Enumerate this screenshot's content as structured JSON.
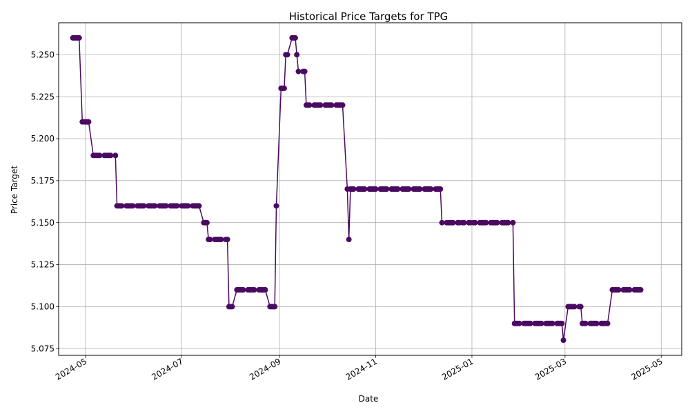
{
  "chart_data": {
    "type": "line",
    "title": "Historical Price Targets for TPG",
    "xlabel": "Date",
    "ylabel": "Price Target",
    "grid": true,
    "line_color": "#4b0a62",
    "marker": "circle",
    "ylim": [
      5.071,
      5.269
    ],
    "xlim": [
      "2024-04-14",
      "2025-05-14"
    ],
    "yticks": [
      "5.075",
      "5.100",
      "5.125",
      "5.150",
      "5.175",
      "5.200",
      "5.225",
      "5.250"
    ],
    "xticks": [
      {
        "date": "2024-05-01",
        "label": "2024-05"
      },
      {
        "date": "2024-07-01",
        "label": "2024-07"
      },
      {
        "date": "2024-09-01",
        "label": "2024-09"
      },
      {
        "date": "2024-11-01",
        "label": "2024-11"
      },
      {
        "date": "2025-01-01",
        "label": "2025-01"
      },
      {
        "date": "2025-03-01",
        "label": "2025-03"
      },
      {
        "date": "2025-05-01",
        "label": "2025-05"
      }
    ],
    "series": [
      {
        "points": [
          [
            "2024-04-23",
            5.26
          ],
          [
            "2024-04-24",
            5.26
          ],
          [
            "2024-04-25",
            5.26
          ],
          [
            "2024-04-26",
            5.26
          ],
          [
            "2024-04-27",
            5.26
          ],
          [
            "2024-04-29",
            5.21
          ],
          [
            "2024-04-30",
            5.21
          ],
          [
            "2024-05-01",
            5.21
          ],
          [
            "2024-05-02",
            5.21
          ],
          [
            "2024-05-03",
            5.21
          ],
          [
            "2024-05-06",
            5.19
          ],
          [
            "2024-05-07",
            5.19
          ],
          [
            "2024-05-08",
            5.19
          ],
          [
            "2024-05-09",
            5.19
          ],
          [
            "2024-05-10",
            5.19
          ],
          [
            "2024-05-13",
            5.19
          ],
          [
            "2024-05-14",
            5.19
          ],
          [
            "2024-05-15",
            5.19
          ],
          [
            "2024-05-16",
            5.19
          ],
          [
            "2024-05-17",
            5.19
          ],
          [
            "2024-05-20",
            5.19
          ],
          [
            "2024-05-21",
            5.16
          ],
          [
            "2024-05-22",
            5.16
          ],
          [
            "2024-05-23",
            5.16
          ],
          [
            "2024-05-24",
            5.16
          ],
          [
            "2024-05-27",
            5.16
          ],
          [
            "2024-05-28",
            5.16
          ],
          [
            "2024-05-29",
            5.16
          ],
          [
            "2024-05-30",
            5.16
          ],
          [
            "2024-05-31",
            5.16
          ],
          [
            "2024-06-03",
            5.16
          ],
          [
            "2024-06-04",
            5.16
          ],
          [
            "2024-06-05",
            5.16
          ],
          [
            "2024-06-06",
            5.16
          ],
          [
            "2024-06-07",
            5.16
          ],
          [
            "2024-06-10",
            5.16
          ],
          [
            "2024-06-11",
            5.16
          ],
          [
            "2024-06-12",
            5.16
          ],
          [
            "2024-06-13",
            5.16
          ],
          [
            "2024-06-14",
            5.16
          ],
          [
            "2024-06-17",
            5.16
          ],
          [
            "2024-06-18",
            5.16
          ],
          [
            "2024-06-19",
            5.16
          ],
          [
            "2024-06-20",
            5.16
          ],
          [
            "2024-06-21",
            5.16
          ],
          [
            "2024-06-24",
            5.16
          ],
          [
            "2024-06-25",
            5.16
          ],
          [
            "2024-06-26",
            5.16
          ],
          [
            "2024-06-27",
            5.16
          ],
          [
            "2024-06-28",
            5.16
          ],
          [
            "2024-07-01",
            5.16
          ],
          [
            "2024-07-02",
            5.16
          ],
          [
            "2024-07-03",
            5.16
          ],
          [
            "2024-07-04",
            5.16
          ],
          [
            "2024-07-05",
            5.16
          ],
          [
            "2024-07-08",
            5.16
          ],
          [
            "2024-07-09",
            5.16
          ],
          [
            "2024-07-10",
            5.16
          ],
          [
            "2024-07-11",
            5.16
          ],
          [
            "2024-07-12",
            5.16
          ],
          [
            "2024-07-15",
            5.15
          ],
          [
            "2024-07-16",
            5.15
          ],
          [
            "2024-07-17",
            5.15
          ],
          [
            "2024-07-18",
            5.14
          ],
          [
            "2024-07-19",
            5.14
          ],
          [
            "2024-07-22",
            5.14
          ],
          [
            "2024-07-23",
            5.14
          ],
          [
            "2024-07-24",
            5.14
          ],
          [
            "2024-07-25",
            5.14
          ],
          [
            "2024-07-26",
            5.14
          ],
          [
            "2024-07-29",
            5.14
          ],
          [
            "2024-07-30",
            5.14
          ],
          [
            "2024-07-31",
            5.1
          ],
          [
            "2024-08-01",
            5.1
          ],
          [
            "2024-08-02",
            5.1
          ],
          [
            "2024-08-05",
            5.11
          ],
          [
            "2024-08-06",
            5.11
          ],
          [
            "2024-08-07",
            5.11
          ],
          [
            "2024-08-08",
            5.11
          ],
          [
            "2024-08-09",
            5.11
          ],
          [
            "2024-08-12",
            5.11
          ],
          [
            "2024-08-13",
            5.11
          ],
          [
            "2024-08-14",
            5.11
          ],
          [
            "2024-08-15",
            5.11
          ],
          [
            "2024-08-16",
            5.11
          ],
          [
            "2024-08-19",
            5.11
          ],
          [
            "2024-08-20",
            5.11
          ],
          [
            "2024-08-21",
            5.11
          ],
          [
            "2024-08-22",
            5.11
          ],
          [
            "2024-08-23",
            5.11
          ],
          [
            "2024-08-26",
            5.1
          ],
          [
            "2024-08-27",
            5.1
          ],
          [
            "2024-08-28",
            5.1
          ],
          [
            "2024-08-29",
            5.1
          ],
          [
            "2024-08-30",
            5.16
          ],
          [
            "2024-09-02",
            5.23
          ],
          [
            "2024-09-03",
            5.23
          ],
          [
            "2024-09-04",
            5.23
          ],
          [
            "2024-09-05",
            5.25
          ],
          [
            "2024-09-06",
            5.25
          ],
          [
            "2024-09-09",
            5.26
          ],
          [
            "2024-09-10",
            5.26
          ],
          [
            "2024-09-11",
            5.26
          ],
          [
            "2024-09-12",
            5.25
          ],
          [
            "2024-09-13",
            5.24
          ],
          [
            "2024-09-16",
            5.24
          ],
          [
            "2024-09-17",
            5.24
          ],
          [
            "2024-09-18",
            5.22
          ],
          [
            "2024-09-19",
            5.22
          ],
          [
            "2024-09-20",
            5.22
          ],
          [
            "2024-09-23",
            5.22
          ],
          [
            "2024-09-24",
            5.22
          ],
          [
            "2024-09-25",
            5.22
          ],
          [
            "2024-09-26",
            5.22
          ],
          [
            "2024-09-27",
            5.22
          ],
          [
            "2024-09-30",
            5.22
          ],
          [
            "2024-10-01",
            5.22
          ],
          [
            "2024-10-02",
            5.22
          ],
          [
            "2024-10-03",
            5.22
          ],
          [
            "2024-10-04",
            5.22
          ],
          [
            "2024-10-07",
            5.22
          ],
          [
            "2024-10-08",
            5.22
          ],
          [
            "2024-10-09",
            5.22
          ],
          [
            "2024-10-10",
            5.22
          ],
          [
            "2024-10-11",
            5.22
          ],
          [
            "2024-10-14",
            5.17
          ],
          [
            "2024-10-15",
            5.14
          ],
          [
            "2024-10-16",
            5.17
          ],
          [
            "2024-10-17",
            5.17
          ],
          [
            "2024-10-18",
            5.17
          ],
          [
            "2024-10-21",
            5.17
          ],
          [
            "2024-10-22",
            5.17
          ],
          [
            "2024-10-23",
            5.17
          ],
          [
            "2024-10-24",
            5.17
          ],
          [
            "2024-10-25",
            5.17
          ],
          [
            "2024-10-28",
            5.17
          ],
          [
            "2024-10-29",
            5.17
          ],
          [
            "2024-10-30",
            5.17
          ],
          [
            "2024-10-31",
            5.17
          ],
          [
            "2024-11-01",
            5.17
          ],
          [
            "2024-11-04",
            5.17
          ],
          [
            "2024-11-05",
            5.17
          ],
          [
            "2024-11-06",
            5.17
          ],
          [
            "2024-11-07",
            5.17
          ],
          [
            "2024-11-08",
            5.17
          ],
          [
            "2024-11-11",
            5.17
          ],
          [
            "2024-11-12",
            5.17
          ],
          [
            "2024-11-13",
            5.17
          ],
          [
            "2024-11-14",
            5.17
          ],
          [
            "2024-11-15",
            5.17
          ],
          [
            "2024-11-18",
            5.17
          ],
          [
            "2024-11-19",
            5.17
          ],
          [
            "2024-11-20",
            5.17
          ],
          [
            "2024-11-21",
            5.17
          ],
          [
            "2024-11-22",
            5.17
          ],
          [
            "2024-11-25",
            5.17
          ],
          [
            "2024-11-26",
            5.17
          ],
          [
            "2024-11-27",
            5.17
          ],
          [
            "2024-11-28",
            5.17
          ],
          [
            "2024-11-29",
            5.17
          ],
          [
            "2024-12-02",
            5.17
          ],
          [
            "2024-12-03",
            5.17
          ],
          [
            "2024-12-04",
            5.17
          ],
          [
            "2024-12-05",
            5.17
          ],
          [
            "2024-12-06",
            5.17
          ],
          [
            "2024-12-09",
            5.17
          ],
          [
            "2024-12-10",
            5.17
          ],
          [
            "2024-12-11",
            5.17
          ],
          [
            "2024-12-12",
            5.17
          ],
          [
            "2024-12-13",
            5.15
          ],
          [
            "2024-12-16",
            5.15
          ],
          [
            "2024-12-17",
            5.15
          ],
          [
            "2024-12-18",
            5.15
          ],
          [
            "2024-12-19",
            5.15
          ],
          [
            "2024-12-20",
            5.15
          ],
          [
            "2024-12-23",
            5.15
          ],
          [
            "2024-12-24",
            5.15
          ],
          [
            "2024-12-26",
            5.15
          ],
          [
            "2024-12-27",
            5.15
          ],
          [
            "2024-12-30",
            5.15
          ],
          [
            "2024-12-31",
            5.15
          ],
          [
            "2025-01-02",
            5.15
          ],
          [
            "2025-01-03",
            5.15
          ],
          [
            "2025-01-06",
            5.15
          ],
          [
            "2025-01-07",
            5.15
          ],
          [
            "2025-01-08",
            5.15
          ],
          [
            "2025-01-09",
            5.15
          ],
          [
            "2025-01-10",
            5.15
          ],
          [
            "2025-01-13",
            5.15
          ],
          [
            "2025-01-14",
            5.15
          ],
          [
            "2025-01-15",
            5.15
          ],
          [
            "2025-01-16",
            5.15
          ],
          [
            "2025-01-17",
            5.15
          ],
          [
            "2025-01-20",
            5.15
          ],
          [
            "2025-01-21",
            5.15
          ],
          [
            "2025-01-22",
            5.15
          ],
          [
            "2025-01-23",
            5.15
          ],
          [
            "2025-01-24",
            5.15
          ],
          [
            "2025-01-27",
            5.15
          ],
          [
            "2025-01-28",
            5.09
          ],
          [
            "2025-01-29",
            5.09
          ],
          [
            "2025-01-30",
            5.09
          ],
          [
            "2025-01-31",
            5.09
          ],
          [
            "2025-02-03",
            5.09
          ],
          [
            "2025-02-04",
            5.09
          ],
          [
            "2025-02-05",
            5.09
          ],
          [
            "2025-02-06",
            5.09
          ],
          [
            "2025-02-07",
            5.09
          ],
          [
            "2025-02-10",
            5.09
          ],
          [
            "2025-02-11",
            5.09
          ],
          [
            "2025-02-12",
            5.09
          ],
          [
            "2025-02-13",
            5.09
          ],
          [
            "2025-02-14",
            5.09
          ],
          [
            "2025-02-17",
            5.09
          ],
          [
            "2025-02-18",
            5.09
          ],
          [
            "2025-02-19",
            5.09
          ],
          [
            "2025-02-20",
            5.09
          ],
          [
            "2025-02-21",
            5.09
          ],
          [
            "2025-02-24",
            5.09
          ],
          [
            "2025-02-25",
            5.09
          ],
          [
            "2025-02-26",
            5.09
          ],
          [
            "2025-02-27",
            5.09
          ],
          [
            "2025-02-28",
            5.08
          ],
          [
            "2025-03-03",
            5.1
          ],
          [
            "2025-03-04",
            5.1
          ],
          [
            "2025-03-05",
            5.1
          ],
          [
            "2025-03-06",
            5.1
          ],
          [
            "2025-03-07",
            5.1
          ],
          [
            "2025-03-10",
            5.1
          ],
          [
            "2025-03-11",
            5.1
          ],
          [
            "2025-03-12",
            5.09
          ],
          [
            "2025-03-13",
            5.09
          ],
          [
            "2025-03-14",
            5.09
          ],
          [
            "2025-03-17",
            5.09
          ],
          [
            "2025-03-18",
            5.09
          ],
          [
            "2025-03-19",
            5.09
          ],
          [
            "2025-03-20",
            5.09
          ],
          [
            "2025-03-21",
            5.09
          ],
          [
            "2025-03-24",
            5.09
          ],
          [
            "2025-03-25",
            5.09
          ],
          [
            "2025-03-26",
            5.09
          ],
          [
            "2025-03-27",
            5.09
          ],
          [
            "2025-03-28",
            5.09
          ],
          [
            "2025-03-31",
            5.11
          ],
          [
            "2025-04-01",
            5.11
          ],
          [
            "2025-04-02",
            5.11
          ],
          [
            "2025-04-03",
            5.11
          ],
          [
            "2025-04-04",
            5.11
          ],
          [
            "2025-04-07",
            5.11
          ],
          [
            "2025-04-08",
            5.11
          ],
          [
            "2025-04-09",
            5.11
          ],
          [
            "2025-04-10",
            5.11
          ],
          [
            "2025-04-11",
            5.11
          ],
          [
            "2025-04-14",
            5.11
          ],
          [
            "2025-04-15",
            5.11
          ],
          [
            "2025-04-16",
            5.11
          ],
          [
            "2025-04-17",
            5.11
          ],
          [
            "2025-04-18",
            5.11
          ]
        ]
      }
    ]
  }
}
